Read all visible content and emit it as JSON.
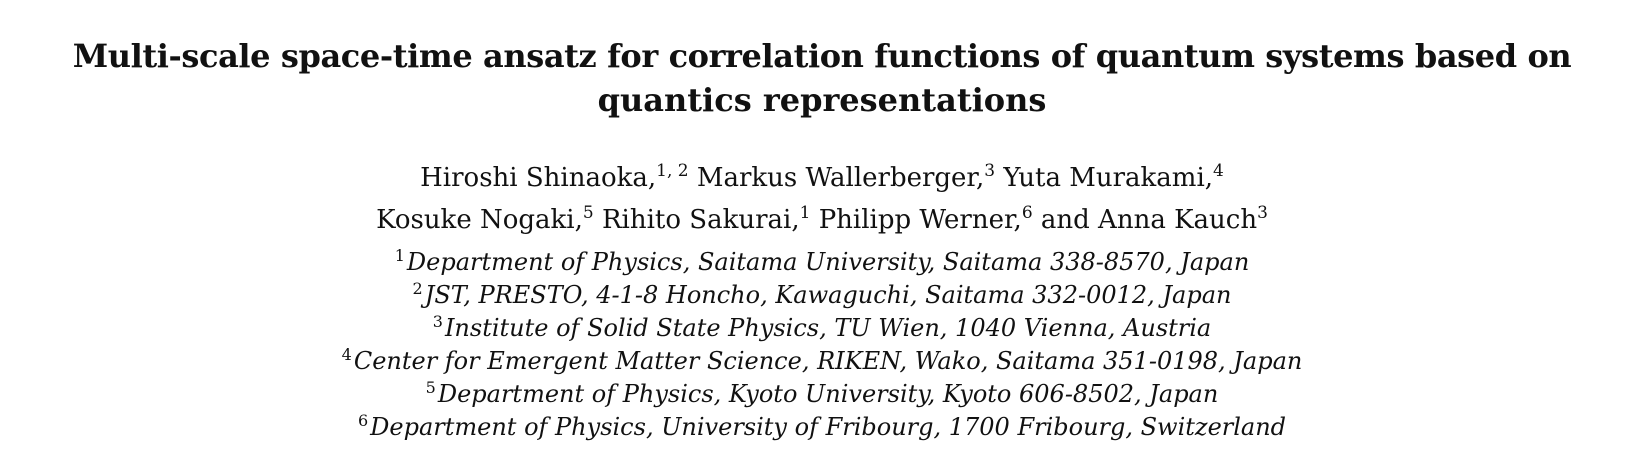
{
  "paper": {
    "title_line1": "Multi-scale space-time ansatz for correlation functions of quantum systems based on",
    "title_line2": "quantics representations",
    "authors": [
      {
        "name": "Hiroshi Shinaoka,",
        "sup": "1, 2"
      },
      {
        "name": "Markus Wallerberger,",
        "sup": "3"
      },
      {
        "name": "Yuta Murakami,",
        "sup": "4"
      },
      {
        "name": "Kosuke Nogaki,",
        "sup": "5"
      },
      {
        "name": "Rihito Sakurai,",
        "sup": "1"
      },
      {
        "name": "Philipp Werner,",
        "sup": "6"
      },
      {
        "name": "and Anna Kauch",
        "sup": "3"
      }
    ],
    "affiliations": [
      {
        "num": "1",
        "text": "Department of Physics, Saitama University, Saitama 338-8570, Japan"
      },
      {
        "num": "2",
        "text": "JST, PRESTO, 4-1-8 Honcho, Kawaguchi, Saitama 332-0012, Japan"
      },
      {
        "num": "3",
        "text": "Institute of Solid State Physics, TU Wien, 1040 Vienna, Austria"
      },
      {
        "num": "4",
        "text": "Center for Emergent Matter Science, RIKEN, Wako, Saitama 351-0198, Japan"
      },
      {
        "num": "5",
        "text": "Department of Physics, Kyoto University, Kyoto 606-8502, Japan"
      },
      {
        "num": "6",
        "text": "Department of Physics, University of Fribourg, 1700 Fribourg, Switzerland"
      }
    ]
  }
}
